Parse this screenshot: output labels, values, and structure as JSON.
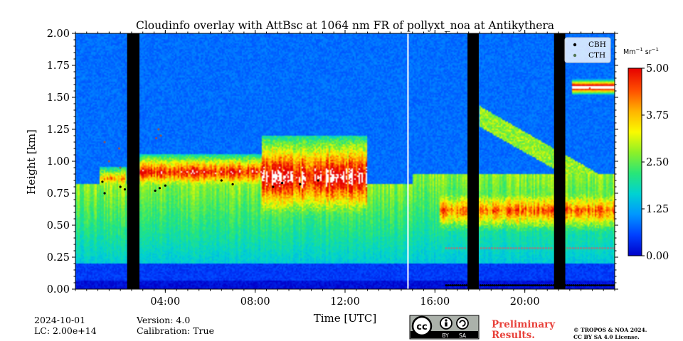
{
  "chart_data": {
    "type": "heatmap",
    "title": "Cloudinfo overlay with AttBsc at 1064 nm FR of pollyxt_noa at Antikythera",
    "xlabel": "Time [UTC]",
    "ylabel": "Height [km]",
    "xlim_hours": [
      0,
      24
    ],
    "ylim": [
      0,
      2.0
    ],
    "x_ticks": [
      {
        "hour": 4,
        "label": "04:00"
      },
      {
        "hour": 8,
        "label": "08:00"
      },
      {
        "hour": 12,
        "label": "12:00"
      },
      {
        "hour": 16,
        "label": "16:00"
      },
      {
        "hour": 20,
        "label": "20:00"
      }
    ],
    "y_ticks": [
      {
        "value": 0.0,
        "label": "0.00"
      },
      {
        "value": 0.25,
        "label": "0.25"
      },
      {
        "value": 0.5,
        "label": "0.50"
      },
      {
        "value": 0.75,
        "label": "0.75"
      },
      {
        "value": 1.0,
        "label": "1.00"
      },
      {
        "value": 1.25,
        "label": "1.25"
      },
      {
        "value": 1.5,
        "label": "1.50"
      },
      {
        "value": 1.75,
        "label": "1.75"
      },
      {
        "value": 2.0,
        "label": "2.00"
      }
    ],
    "colorbar": {
      "unit_base": "Mm",
      "unit_exp1": "−1",
      "unit_mid": " sr",
      "unit_exp2": "−1",
      "range": [
        0,
        5.0
      ],
      "ticks": [
        {
          "value": 0.0,
          "label": "0.00"
        },
        {
          "value": 1.25,
          "label": "1.25"
        },
        {
          "value": 2.5,
          "label": "2.50"
        },
        {
          "value": 3.75,
          "label": "3.75"
        },
        {
          "value": 5.0,
          "label": "5.00"
        }
      ],
      "colors": [
        "#0000c8",
        "#0040ff",
        "#0096ff",
        "#00d2d2",
        "#28e678",
        "#8cf028",
        "#fafa00",
        "#ffb400",
        "#ff5000",
        "#e60000"
      ]
    },
    "legend": {
      "placement": "top-right",
      "entries": [
        {
          "label": "CBH",
          "color": "#000000"
        },
        {
          "label": "CTH",
          "color": "#557755"
        }
      ]
    },
    "no_data_hours": [
      [
        2.3,
        2.85
      ],
      [
        17.45,
        17.95
      ],
      [
        21.3,
        21.8
      ]
    ],
    "gap_hour": 14.8,
    "cloud_layers": [
      {
        "start": 1.1,
        "end": 2.3,
        "base_km": 0.78,
        "top_km": 0.95,
        "peak": 3.5
      },
      {
        "start": 2.85,
        "end": 8.3,
        "base_km": 0.78,
        "top_km": 1.05,
        "peak": 4.6
      },
      {
        "start": 8.3,
        "end": 13.0,
        "base_km": 0.55,
        "top_km": 1.2,
        "peak": 5.0
      },
      {
        "start": 16.2,
        "end": 24.0,
        "base_km": 0.45,
        "top_km": 0.78,
        "peak": 4.0
      }
    ],
    "elevated_layer": {
      "start": 22.1,
      "end": 24.0,
      "center_km": 1.58,
      "peak": 5.0
    },
    "cbh_high_points": [
      [
        1.2,
        0.84
      ],
      [
        1.3,
        0.75
      ],
      [
        2.0,
        0.8
      ],
      [
        2.2,
        0.78
      ],
      [
        3.55,
        0.77
      ],
      [
        3.75,
        0.79
      ],
      [
        4.0,
        0.81
      ],
      [
        6.5,
        0.85
      ],
      [
        7.0,
        0.82
      ],
      [
        8.8,
        0.8
      ],
      [
        9.2,
        0.83
      ],
      [
        10.0,
        0.82
      ],
      [
        10.8,
        0.85
      ]
    ],
    "cbh_low_band": {
      "start": 16.5,
      "end": 24.0,
      "height_km": 0.03
    },
    "cth_band": {
      "start": 16.5,
      "end": 24.0,
      "height_km": 0.32
    },
    "cth_early_points": [
      [
        1.3,
        1.15
      ],
      [
        1.5,
        1.0
      ],
      [
        1.95,
        1.1
      ],
      [
        2.0,
        0.95
      ],
      [
        3.7,
        1.25
      ],
      [
        3.8,
        1.2
      ],
      [
        3.6,
        1.18
      ]
    ]
  },
  "footer": {
    "date": "2024-10-01",
    "lc": "LC: 2.00e+14",
    "version": "Version: 4.0",
    "calibration": "Calibration: True",
    "preliminary_line1": "Preliminary",
    "preliminary_line2": "Results.",
    "copyright_line1": "© TROPOS & NOA 2024.",
    "copyright_line2": "CC BY SA 4.0 License.",
    "license_badge": {
      "cc": "cc",
      "by": "BY",
      "sa": "SA"
    }
  }
}
